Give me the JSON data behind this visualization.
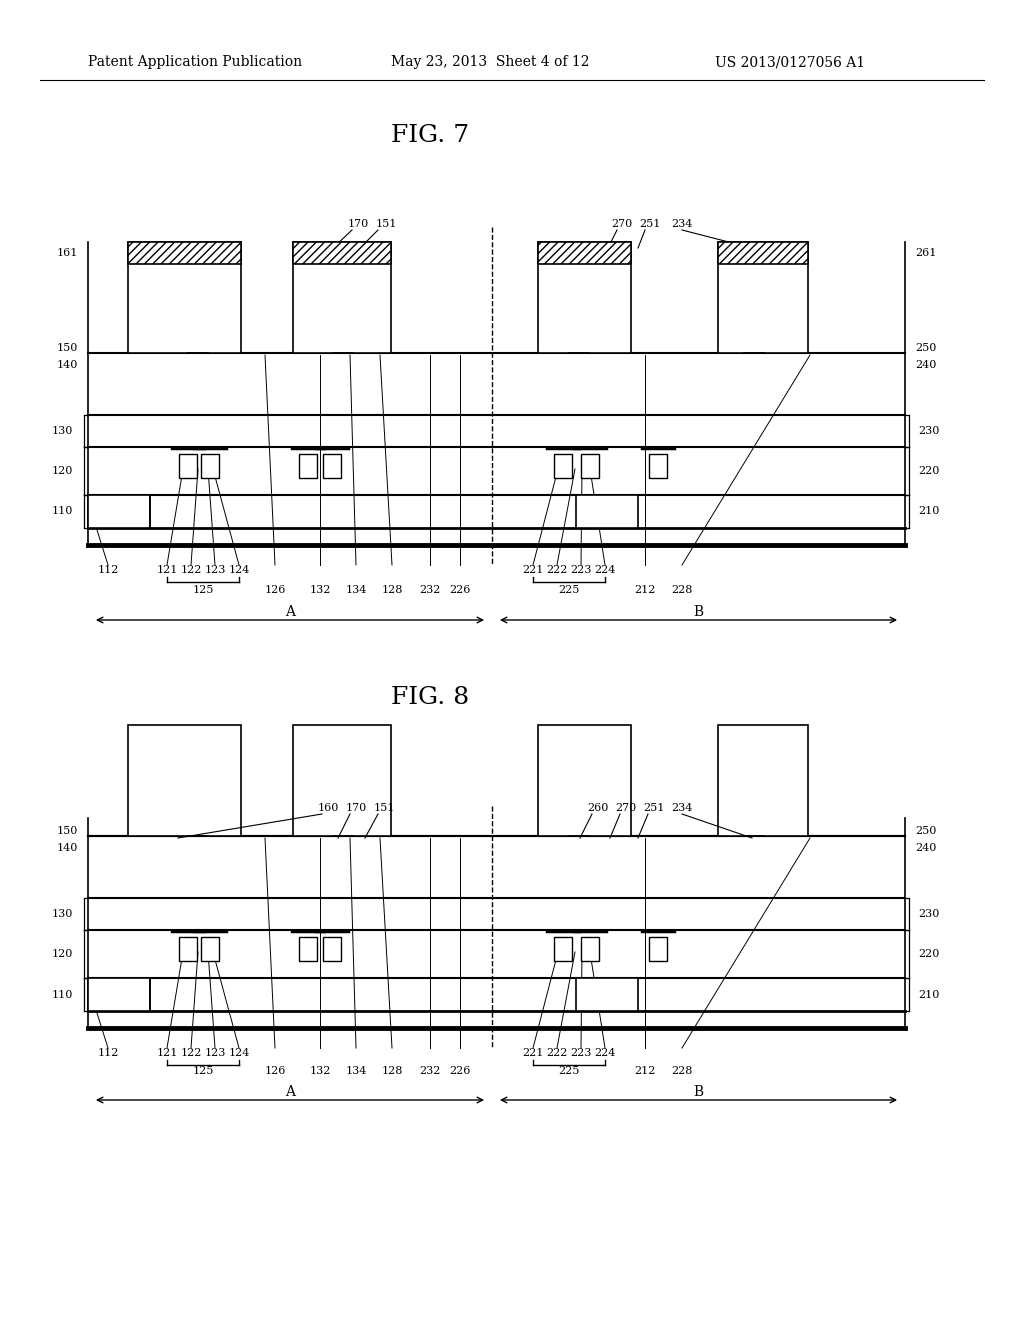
{
  "header_left": "Patent Application Publication",
  "header_mid": "May 23, 2013  Sheet 4 of 12",
  "header_right": "US 2013/0127056 A1",
  "fig7_title": "FIG. 7",
  "fig8_title": "FIG. 8",
  "bg_color": "#ffffff",
  "line_color": "#000000"
}
